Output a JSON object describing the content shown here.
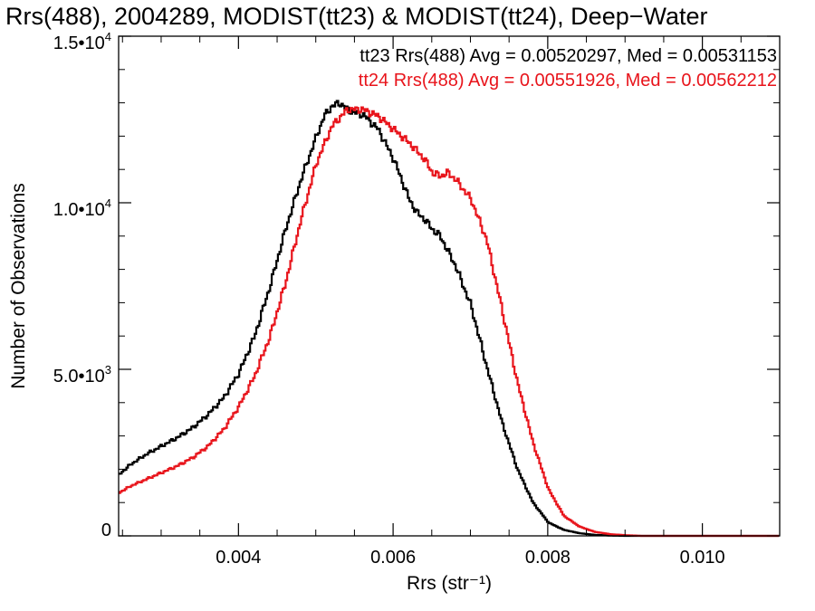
{
  "chart_data": {
    "type": "line",
    "title": "Rrs(488), 2004289, MODIST(tt23) & MODIST(tt24), Deep−Water",
    "xlabel": "Rrs (str⁻¹)",
    "ylabel": "Number of Observations",
    "xlim": [
      0.00245,
      0.011
    ],
    "ylim": [
      0,
      15000
    ],
    "x_ticks": [
      {
        "value": 0.004,
        "label": "0.004"
      },
      {
        "value": 0.006,
        "label": "0.006"
      },
      {
        "value": 0.008,
        "label": "0.008"
      },
      {
        "value": 0.01,
        "label": "0.010"
      }
    ],
    "y_ticks": [
      {
        "value": 0,
        "label": "0",
        "sup": ""
      },
      {
        "value": 5000,
        "label": "5.0•10",
        "sup": "3"
      },
      {
        "value": 10000,
        "label": "1.0•10",
        "sup": "4"
      },
      {
        "value": 15000,
        "label": "1.5•10",
        "sup": "4"
      }
    ],
    "grid": false,
    "legend_position": "top-right",
    "series": [
      {
        "name": "tt23",
        "legend": "tt23 Rrs(488) Avg = 0.00520297, Med = 0.00531153",
        "color": "#000000",
        "points": [
          [
            0.00245,
            1850
          ],
          [
            0.0026,
            2150
          ],
          [
            0.0028,
            2450
          ],
          [
            0.003,
            2700
          ],
          [
            0.0032,
            2950
          ],
          [
            0.0034,
            3250
          ],
          [
            0.0036,
            3650
          ],
          [
            0.0038,
            4150
          ],
          [
            0.004,
            4900
          ],
          [
            0.0042,
            6000
          ],
          [
            0.0044,
            7500
          ],
          [
            0.0046,
            9200
          ],
          [
            0.0048,
            10700
          ],
          [
            0.005,
            12000
          ],
          [
            0.0051,
            12600
          ],
          [
            0.0052,
            12900
          ],
          [
            0.0053,
            13000
          ],
          [
            0.0054,
            12800
          ],
          [
            0.0055,
            12700
          ],
          [
            0.0056,
            12650
          ],
          [
            0.0058,
            12200
          ],
          [
            0.006,
            11300
          ],
          [
            0.0062,
            10100
          ],
          [
            0.0063,
            9700
          ],
          [
            0.0064,
            9500
          ],
          [
            0.0065,
            9200
          ],
          [
            0.0066,
            9000
          ],
          [
            0.0068,
            8100
          ],
          [
            0.007,
            6900
          ],
          [
            0.0072,
            5100
          ],
          [
            0.0074,
            3400
          ],
          [
            0.0076,
            2000
          ],
          [
            0.0078,
            1000
          ],
          [
            0.008,
            400
          ],
          [
            0.0082,
            180
          ],
          [
            0.0084,
            80
          ],
          [
            0.0086,
            30
          ],
          [
            0.0088,
            10
          ],
          [
            0.009,
            0
          ],
          [
            0.011,
            0
          ]
        ]
      },
      {
        "name": "tt24",
        "legend": "tt24 Rrs(488) Avg = 0.00551926, Med = 0.00562212",
        "color": "#e8141b",
        "points": [
          [
            0.00245,
            1300
          ],
          [
            0.0026,
            1500
          ],
          [
            0.0028,
            1700
          ],
          [
            0.003,
            1900
          ],
          [
            0.0032,
            2100
          ],
          [
            0.0034,
            2350
          ],
          [
            0.0036,
            2700
          ],
          [
            0.0038,
            3200
          ],
          [
            0.004,
            3900
          ],
          [
            0.0042,
            4800
          ],
          [
            0.0044,
            6000
          ],
          [
            0.0046,
            7600
          ],
          [
            0.0048,
            9500
          ],
          [
            0.005,
            11200
          ],
          [
            0.0052,
            12300
          ],
          [
            0.0054,
            12800
          ],
          [
            0.0056,
            12800
          ],
          [
            0.0058,
            12600
          ],
          [
            0.006,
            12200
          ],
          [
            0.0062,
            11800
          ],
          [
            0.0064,
            11300
          ],
          [
            0.0065,
            10900
          ],
          [
            0.0066,
            10800
          ],
          [
            0.0067,
            10900
          ],
          [
            0.0068,
            10700
          ],
          [
            0.007,
            10100
          ],
          [
            0.0072,
            8900
          ],
          [
            0.0074,
            6800
          ],
          [
            0.0076,
            4600
          ],
          [
            0.0078,
            2800
          ],
          [
            0.008,
            1400
          ],
          [
            0.0082,
            600
          ],
          [
            0.0084,
            280
          ],
          [
            0.0086,
            120
          ],
          [
            0.0088,
            50
          ],
          [
            0.009,
            20
          ],
          [
            0.0092,
            0
          ],
          [
            0.011,
            0
          ]
        ]
      }
    ]
  }
}
